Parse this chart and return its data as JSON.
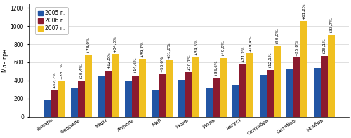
{
  "months": [
    "Январь",
    "Февраль",
    "Март",
    "Апрель",
    "Май",
    "Июнь",
    "Июль",
    "Август",
    "Сентябрь",
    "Октябрь",
    "Ноябрь"
  ],
  "values_2005": [
    185,
    320,
    450,
    400,
    300,
    405,
    310,
    345,
    460,
    520,
    535
  ],
  "values_2006": [
    295,
    390,
    510,
    455,
    475,
    490,
    430,
    585,
    515,
    655,
    670
  ],
  "values_2007": [
    395,
    680,
    690,
    635,
    620,
    660,
    645,
    700,
    775,
    1055,
    900
  ],
  "pct_2006": [
    "+57,2%",
    "+20,4%",
    "+12,8%",
    "+14,6%",
    "+56,6%",
    "+20,7%",
    "+36,6%",
    "+71,2%",
    "+12,1%",
    "+25,8%",
    "+28,1%"
  ],
  "pct_2007": [
    "+33,1%",
    "+73,0%",
    "+34,3%",
    "+39,7%",
    "+31,6%",
    "+34,5%",
    "+49,9%",
    "+19,4%",
    "+50,0%",
    "+61,2%",
    "+33,7%"
  ],
  "color_2005": "#2255A4",
  "color_2006": "#8B1A2E",
  "color_2007": "#F0C020",
  "ylabel": "Млн грн.",
  "ylim": [
    0,
    1250
  ],
  "yticks": [
    0,
    200,
    400,
    600,
    800,
    1000,
    1200
  ],
  "legend_labels": [
    "2005 г.",
    "2006 г.",
    "2007 г."
  ],
  "pct_fontsize": 4.2,
  "bar_width": 0.26
}
